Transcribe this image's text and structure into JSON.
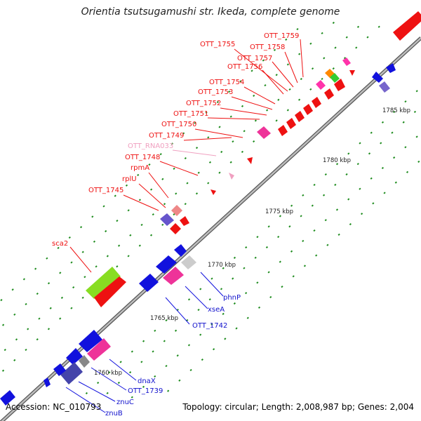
{
  "title": "Orientia tsutsugamushi str. Ikeda, complete genome",
  "footer": {
    "accession": "Accession: NC_010793",
    "summary": "Topology: circular; Length: 2,008,987 bp; Genes: 2,004"
  },
  "colors": {
    "backbone": "#888888",
    "tick": "#1e8c1e",
    "upper_label": "#ee1111",
    "rna_label": "#f0a0c0",
    "lower_label": "#1111cc",
    "forward_gene": "#ee1111",
    "reverse_gene": "#1111dd"
  },
  "scale_labels": [
    "1760 kbp",
    "1765 kbp",
    "1770 kbp",
    "1775 kbp",
    "1780 kbp",
    "1785 kbp"
  ],
  "upper_gene_labels": [
    "OTT_1759",
    "OTT_1755",
    "OTT_1758",
    "OTT_1757",
    "OTT_1756",
    "OTT_1754",
    "OTT_1753",
    "OTT_1752",
    "OTT_1751",
    "OTT_1750",
    "OTT_1749",
    "OTT_RNA033",
    "OTT_1748",
    "rpmA",
    "rplU",
    "OTT_1745",
    "sca2"
  ],
  "lower_gene_labels": [
    "phnP",
    "xseA",
    "OTT_1742",
    "dnaX",
    "OTT_1739",
    "znuC",
    "znuB"
  ]
}
